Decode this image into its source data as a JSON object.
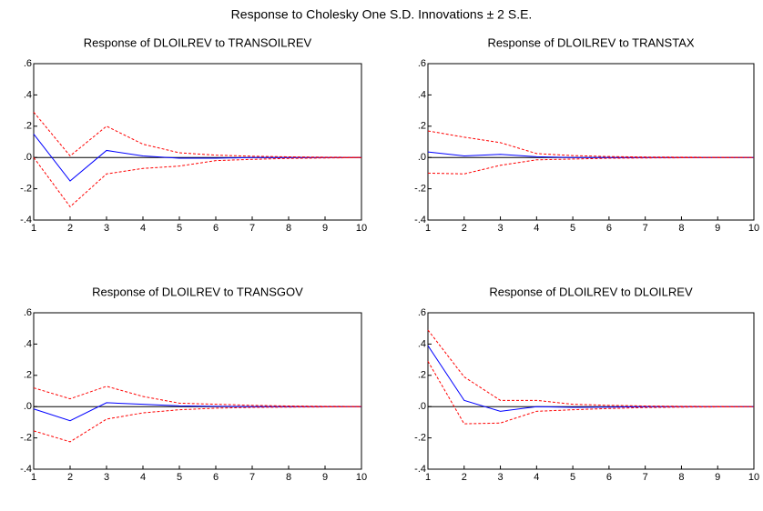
{
  "title": "Response to Cholesky One S.D. Innovations ± 2 S.E.",
  "chart_data": [
    {
      "type": "line",
      "title": "Response of DLOILREV to TRANSOILREV",
      "x": [
        1,
        2,
        3,
        4,
        5,
        6,
        7,
        8,
        9,
        10
      ],
      "xlim": [
        1,
        10
      ],
      "xticks": [
        1,
        2,
        3,
        4,
        5,
        6,
        7,
        8,
        9,
        10
      ],
      "ylim": [
        -0.4,
        0.6
      ],
      "yticks": [
        {
          "value": -0.4,
          "label": "-.4"
        },
        {
          "value": -0.2,
          "label": "-.2"
        },
        {
          "value": 0,
          "label": ".0"
        },
        {
          "value": 0.2,
          "label": ".2"
        },
        {
          "value": 0.4,
          "label": ".4"
        },
        {
          "value": 0.6,
          "label": ".6"
        }
      ],
      "series": [
        {
          "color": "#0000ff",
          "style": "solid",
          "values": [
            0.15,
            -0.15,
            0.045,
            0.01,
            -0.005,
            -0.005,
            0,
            0,
            0,
            0
          ]
        },
        {
          "color": "#ff0000",
          "style": "dashed",
          "values": [
            0.29,
            0.01,
            0.2,
            0.085,
            0.03,
            0.015,
            0.008,
            0.004,
            0.002,
            0.001
          ]
        },
        {
          "color": "#ff0000",
          "style": "dashed",
          "values": [
            0.0,
            -0.315,
            -0.105,
            -0.07,
            -0.055,
            -0.02,
            -0.012,
            -0.006,
            -0.003,
            -0.001
          ]
        }
      ]
    },
    {
      "type": "line",
      "title": "Response of DLOILREV to TRANSTAX",
      "x": [
        1,
        2,
        3,
        4,
        5,
        6,
        7,
        8,
        9,
        10
      ],
      "xlim": [
        1,
        10
      ],
      "xticks": [
        1,
        2,
        3,
        4,
        5,
        6,
        7,
        8,
        9,
        10
      ],
      "ylim": [
        -0.4,
        0.6
      ],
      "yticks": [
        {
          "value": -0.4,
          "label": "-.4"
        },
        {
          "value": -0.2,
          "label": "-.2"
        },
        {
          "value": 0,
          "label": ".0"
        },
        {
          "value": 0.2,
          "label": ".2"
        },
        {
          "value": 0.4,
          "label": ".4"
        },
        {
          "value": 0.6,
          "label": ".6"
        }
      ],
      "series": [
        {
          "color": "#0000ff",
          "style": "solid",
          "values": [
            0.035,
            0.01,
            0.02,
            0.005,
            0,
            0,
            0,
            0,
            0,
            0
          ]
        },
        {
          "color": "#ff0000",
          "style": "dashed",
          "values": [
            0.17,
            0.13,
            0.095,
            0.025,
            0.012,
            0.006,
            0.003,
            0.002,
            0.001,
            0
          ]
        },
        {
          "color": "#ff0000",
          "style": "dashed",
          "values": [
            -0.1,
            -0.105,
            -0.05,
            -0.015,
            -0.01,
            -0.005,
            -0.003,
            -0.002,
            -0.001,
            0
          ]
        }
      ]
    },
    {
      "type": "line",
      "title": "Response of DLOILREV to TRANSGOV",
      "x": [
        1,
        2,
        3,
        4,
        5,
        6,
        7,
        8,
        9,
        10
      ],
      "xlim": [
        1,
        10
      ],
      "xticks": [
        1,
        2,
        3,
        4,
        5,
        6,
        7,
        8,
        9,
        10
      ],
      "ylim": [
        -0.4,
        0.6
      ],
      "yticks": [
        {
          "value": -0.4,
          "label": "-.4"
        },
        {
          "value": -0.2,
          "label": "-.2"
        },
        {
          "value": 0,
          "label": ".0"
        },
        {
          "value": 0.2,
          "label": ".2"
        },
        {
          "value": 0.4,
          "label": ".4"
        },
        {
          "value": 0.6,
          "label": ".6"
        }
      ],
      "series": [
        {
          "color": "#0000ff",
          "style": "solid",
          "values": [
            -0.015,
            -0.09,
            0.025,
            0.015,
            0.005,
            0.002,
            0,
            0,
            0,
            0
          ]
        },
        {
          "color": "#ff0000",
          "style": "dashed",
          "values": [
            0.12,
            0.05,
            0.13,
            0.065,
            0.022,
            0.015,
            0.008,
            0.004,
            0.002,
            0.001
          ]
        },
        {
          "color": "#ff0000",
          "style": "dashed",
          "values": [
            -0.155,
            -0.225,
            -0.08,
            -0.04,
            -0.02,
            -0.01,
            -0.005,
            -0.003,
            -0.002,
            -0.001
          ]
        }
      ]
    },
    {
      "type": "line",
      "title": "Response of DLOILREV to DLOILREV",
      "x": [
        1,
        2,
        3,
        4,
        5,
        6,
        7,
        8,
        9,
        10
      ],
      "xlim": [
        1,
        10
      ],
      "xticks": [
        1,
        2,
        3,
        4,
        5,
        6,
        7,
        8,
        9,
        10
      ],
      "ylim": [
        -0.4,
        0.6
      ],
      "yticks": [
        {
          "value": -0.4,
          "label": "-.4"
        },
        {
          "value": -0.2,
          "label": "-.2"
        },
        {
          "value": 0,
          "label": ".0"
        },
        {
          "value": 0.2,
          "label": ".2"
        },
        {
          "value": 0.4,
          "label": ".4"
        },
        {
          "value": 0.6,
          "label": ".6"
        }
      ],
      "series": [
        {
          "color": "#0000ff",
          "style": "solid",
          "values": [
            0.39,
            0.04,
            -0.03,
            0,
            -0.005,
            -0.003,
            0,
            0,
            0,
            0
          ]
        },
        {
          "color": "#ff0000",
          "style": "dashed",
          "values": [
            0.49,
            0.19,
            0.04,
            0.04,
            0.015,
            0.008,
            0.004,
            0.002,
            0.001,
            0
          ]
        },
        {
          "color": "#ff0000",
          "style": "dashed",
          "values": [
            0.29,
            -0.11,
            -0.105,
            -0.03,
            -0.02,
            -0.012,
            -0.006,
            -0.003,
            -0.002,
            -0.001
          ]
        }
      ]
    }
  ]
}
